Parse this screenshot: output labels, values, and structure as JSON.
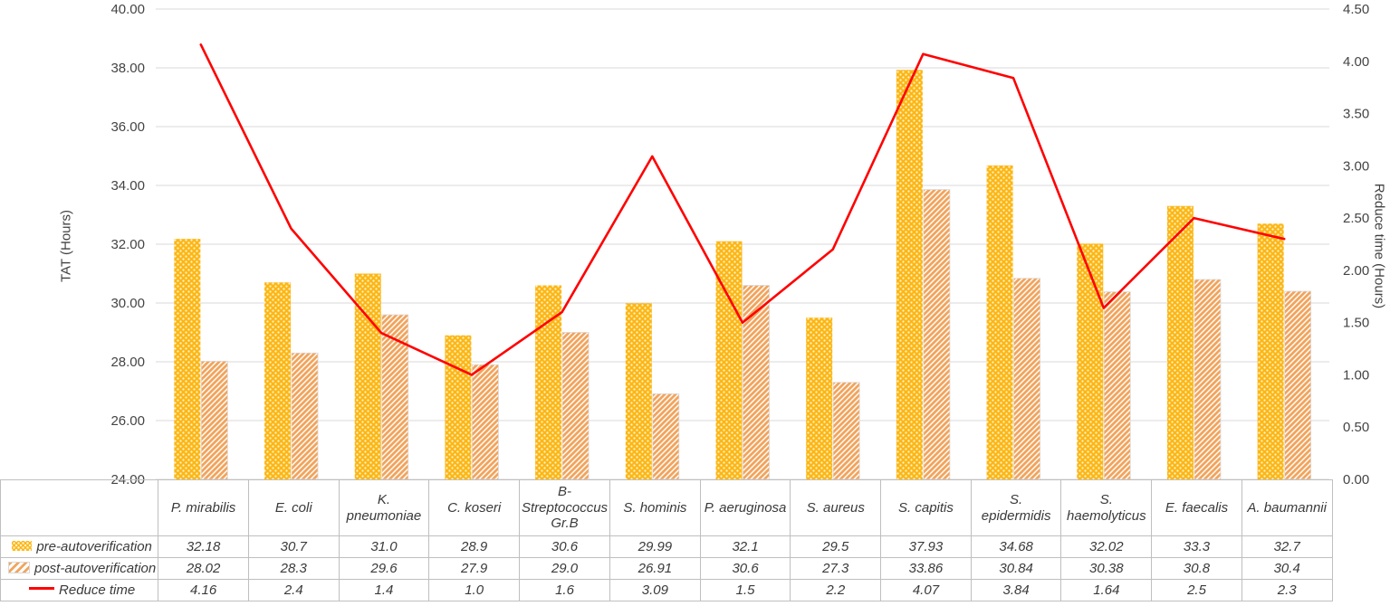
{
  "chart_data": {
    "type": "bar",
    "subtype": "clustered-bar-with-line-combo",
    "categories": [
      "P. mirabilis",
      "E. coli",
      "K. pneumoniae",
      "C. koseri",
      "B-Streptococcus Gr.B",
      "S. hominis",
      "P. aeruginosa",
      "S. aureus",
      "S. capitis",
      "S. epidermidis",
      "S. haemolyticus",
      "E. faecalis",
      "A. baumannii"
    ],
    "series": [
      {
        "name": "pre-autoverification",
        "type": "bar",
        "axis": "left",
        "pattern": "dots",
        "color": "#FCB714",
        "values": [
          32.18,
          30.7,
          31.0,
          28.9,
          30.6,
          29.99,
          32.1,
          29.5,
          37.93,
          34.68,
          32.02,
          33.3,
          32.7
        ],
        "values_display": [
          "32.18",
          "30.7",
          "31.0",
          "28.9",
          "30.6",
          "29.99",
          "32.1",
          "29.5",
          "37.93",
          "34.68",
          "32.02",
          "33.3",
          "32.7"
        ]
      },
      {
        "name": "post-autoverification",
        "type": "bar",
        "axis": "left",
        "pattern": "diagonal-stripes-up",
        "color": "#F2A45C",
        "values": [
          28.02,
          28.3,
          29.6,
          27.9,
          29.0,
          26.91,
          30.6,
          27.3,
          33.86,
          30.84,
          30.38,
          30.8,
          30.4
        ],
        "values_display": [
          "28.02",
          "28.3",
          "29.6",
          "27.9",
          "29.0",
          "26.91",
          "30.6",
          "27.3",
          "33.86",
          "30.84",
          "30.38",
          "30.8",
          "30.4"
        ]
      },
      {
        "name": "Reduce time",
        "type": "line",
        "axis": "right",
        "pattern": "solid-line",
        "color": "#FF0000",
        "values": [
          4.16,
          2.4,
          1.4,
          1.0,
          1.6,
          3.09,
          1.5,
          2.2,
          4.07,
          3.84,
          1.64,
          2.5,
          2.3
        ],
        "values_display": [
          "4.16",
          "2.4",
          "1.4",
          "1.0",
          "1.6",
          "3.09",
          "1.5",
          "2.2",
          "4.07",
          "3.84",
          "1.64",
          "2.5",
          "2.3"
        ]
      }
    ],
    "left_axis": {
      "title": "TAT (Hours)",
      "min": 24,
      "max": 40,
      "step": 2,
      "ticks": [
        "40.00",
        "38.00",
        "36.00",
        "34.00",
        "32.00",
        "30.00",
        "28.00",
        "26.00",
        "24.00"
      ]
    },
    "right_axis": {
      "title": "Reduce time (Hours)",
      "min": 0,
      "max": 4.5,
      "step": 0.5,
      "ticks": [
        "4.50",
        "4.00",
        "3.50",
        "3.00",
        "2.50",
        "2.00",
        "1.50",
        "1.00",
        "0.50",
        "0.00"
      ]
    },
    "grid": true,
    "legend_position": "data-table-left-column",
    "colors": {
      "grid": "#D9D9D9",
      "axis_text": "#444444",
      "table_border": "#BFBFBF",
      "table_text": "#3a3a3a",
      "post_bar_border": "#D9D9D9"
    }
  }
}
